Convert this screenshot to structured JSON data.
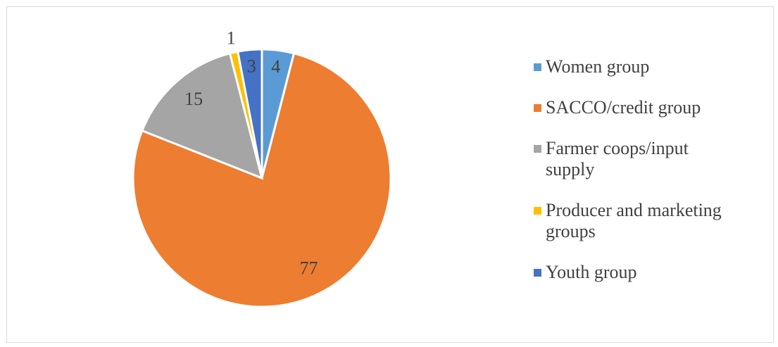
{
  "chart_data": {
    "type": "pie",
    "categories": [
      "Women group",
      "SACCO/credit group",
      "Farmer coops/input supply",
      "Producer and marketing groups",
      "Youth group"
    ],
    "values": [
      4,
      77,
      15,
      1,
      3
    ],
    "colors": [
      "#5b9bd5",
      "#ed7d31",
      "#a5a5a5",
      "#ffc000",
      "#4472c4"
    ],
    "legend": "right"
  }
}
